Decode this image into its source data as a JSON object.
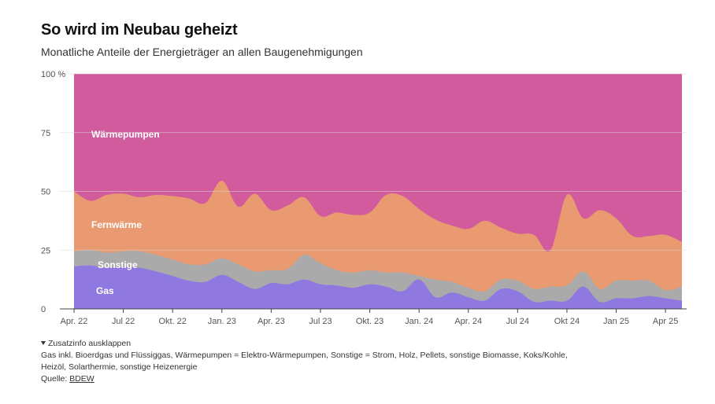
{
  "title": "So wird im Neubau geheizt",
  "subtitle": "Monatliche Anteile der Energieträger an allen Baugenehmigungen",
  "footer": {
    "toggle_label": "Zusatzinfo ausklappen",
    "note_line1": "Gas inkl. Bioerdgas und Flüssiggas, Wärmepumpen = Elektro-Wärmepumpen, Sonstige = Strom, Holz, Pellets, sonstige Biomasse, Koks/Kohle,",
    "note_line2": "Heizöl, Solarthermie, sonstige Heizenergie",
    "source_prefix": "Quelle: ",
    "source_link": "BDEW"
  },
  "chart_data": {
    "type": "area",
    "stacked": true,
    "ylim": [
      0,
      100
    ],
    "yticks": [
      0,
      25,
      50,
      75,
      100
    ],
    "ytick_labels": [
      "0",
      "25",
      "50",
      "75",
      "100 %"
    ],
    "xticks": [
      {
        "label": "Apr. 22",
        "index": 0
      },
      {
        "label": "Jul 22",
        "index": 3
      },
      {
        "label": "Okt. 22",
        "index": 6
      },
      {
        "label": "Jan. 23",
        "index": 9
      },
      {
        "label": "Apr. 23",
        "index": 12
      },
      {
        "label": "Jul 23",
        "index": 15
      },
      {
        "label": "Okt. 23",
        "index": 18
      },
      {
        "label": "Jan. 24",
        "index": 21
      },
      {
        "label": "Apr. 24",
        "index": 24
      },
      {
        "label": "Jul 24",
        "index": 27
      },
      {
        "label": "Okt 24",
        "index": 30
      },
      {
        "label": "Jan 25",
        "index": 33
      },
      {
        "label": "Apr 25",
        "index": 36
      }
    ],
    "x": [
      "2022-04",
      "2022-05",
      "2022-06",
      "2022-07",
      "2022-08",
      "2022-09",
      "2022-10",
      "2022-11",
      "2022-12",
      "2023-01",
      "2023-02",
      "2023-03",
      "2023-04",
      "2023-05",
      "2023-06",
      "2023-07",
      "2023-08",
      "2023-09",
      "2023-10",
      "2023-11",
      "2023-12",
      "2024-01",
      "2024-02",
      "2024-03",
      "2024-04",
      "2024-05",
      "2024-06",
      "2024-07",
      "2024-08",
      "2024-09",
      "2024-10",
      "2024-11",
      "2024-12",
      "2025-01",
      "2025-02",
      "2025-03",
      "2025-04",
      "2025-05"
    ],
    "series": [
      {
        "name": "Gas",
        "color": "#8f79e0",
        "values": [
          18,
          18.5,
          17.5,
          18,
          17.5,
          16,
          14,
          12,
          11.5,
          14.5,
          11.5,
          8.5,
          11,
          10.5,
          12.5,
          10.5,
          10,
          9,
          10.5,
          9.5,
          7.5,
          12.5,
          5,
          7,
          5,
          3.5,
          8.5,
          7.5,
          3,
          3.5,
          3.5,
          9.5,
          3,
          4.5,
          4.5,
          5.5,
          4.5,
          3.5
        ]
      },
      {
        "name": "Sonstige",
        "color": "#aaaaaa",
        "values": [
          6.5,
          6.5,
          6.5,
          6.5,
          7,
          7,
          7,
          7,
          7.5,
          7,
          7.5,
          7.5,
          5.5,
          6.5,
          10.5,
          9,
          6.5,
          6.5,
          6,
          6,
          8,
          1.5,
          7.5,
          4.5,
          4,
          4,
          4,
          4.5,
          5.5,
          6,
          6.5,
          6.5,
          5.5,
          7.5,
          7.5,
          6.5,
          3.5,
          6
        ]
      },
      {
        "name": "Fernwärme",
        "color": "#e99a70",
        "values": [
          25.5,
          21,
          24.5,
          24.5,
          23,
          25.5,
          27,
          28,
          26,
          33,
          24.5,
          33,
          25.5,
          27,
          24.5,
          20,
          24.5,
          24.5,
          24.5,
          33,
          32.5,
          28.5,
          25.5,
          24,
          25,
          30,
          22,
          20,
          23,
          15.5,
          38.5,
          22.5,
          33.5,
          26.5,
          19,
          19,
          23.5,
          19
        ]
      },
      {
        "name": "Wärmepumpen",
        "color": "#d25b9e",
        "values": [
          50,
          54,
          51.5,
          51,
          52.5,
          51.5,
          52,
          53,
          55,
          45.5,
          56.5,
          51,
          58,
          56,
          52.5,
          60.5,
          59,
          60,
          59,
          51.5,
          52,
          57.5,
          62,
          64.5,
          66,
          62.5,
          65.5,
          68,
          68.5,
          75,
          51.5,
          61.5,
          58,
          61.5,
          69,
          69,
          68.5,
          71.5
        ]
      }
    ],
    "area_labels": [
      {
        "text": "Wärmepumpen",
        "series": "Wärmepumpen"
      },
      {
        "text": "Fernwärme",
        "series": "Fernwärme"
      },
      {
        "text": "Sonstige",
        "series": "Sonstige"
      },
      {
        "text": "Gas",
        "series": "Gas"
      }
    ],
    "grid": true,
    "legend": "inline"
  }
}
